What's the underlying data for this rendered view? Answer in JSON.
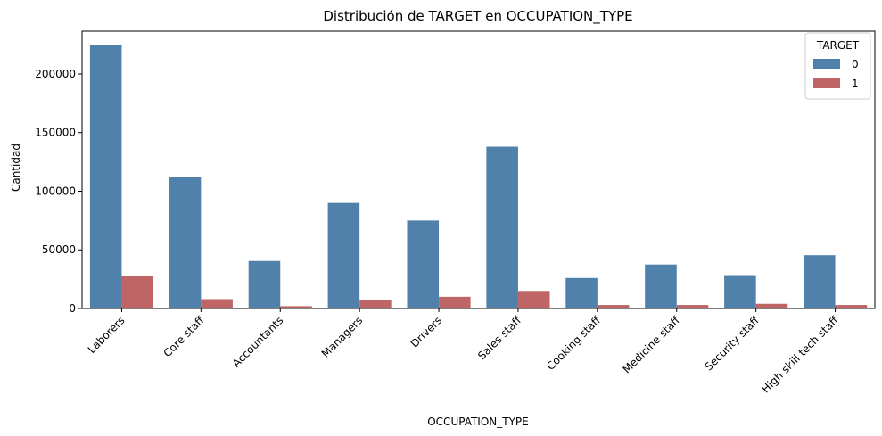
{
  "chart_data": {
    "type": "bar",
    "title": "Distribución de TARGET en OCCUPATION_TYPE",
    "xlabel": "OCCUPATION_TYPE",
    "ylabel": "Cantidad",
    "categories": [
      "Laborers",
      "Core staff",
      "Accountants",
      "Managers",
      "Drivers",
      "Sales staff",
      "Cooking staff",
      "Medicine staff",
      "Security staff",
      "High skill tech staff"
    ],
    "series": [
      {
        "name": "0",
        "color": "#4f81ab",
        "values": [
          225000,
          112000,
          40500,
          90000,
          75000,
          138000,
          26000,
          37500,
          28500,
          45500
        ]
      },
      {
        "name": "1",
        "color": "#c06565",
        "values": [
          28000,
          8000,
          2000,
          7000,
          10000,
          15000,
          3000,
          3000,
          4000,
          3000
        ]
      }
    ],
    "ylim": [
      0,
      236500
    ],
    "yticks": [
      0,
      50000,
      100000,
      150000,
      200000
    ],
    "legend": {
      "title": "TARGET",
      "placement": "top-right"
    },
    "grid": false
  }
}
